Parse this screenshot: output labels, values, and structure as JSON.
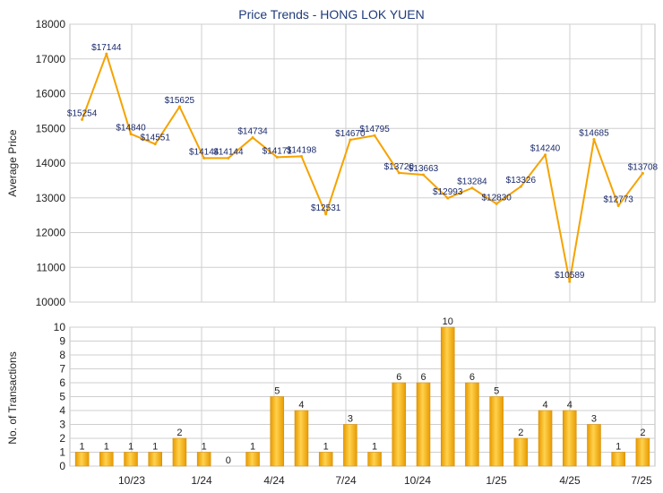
{
  "colors": {
    "line": "#f5a300",
    "bar_light": "#ffd24d",
    "bar_dark": "#e89a00",
    "grid": "#cfcfcf",
    "plot_border": "#bcbcbc",
    "title": "#1f3a7a"
  },
  "chart_data": [
    {
      "type": "line",
      "title": "Price Trends - HONG LOK YUEN",
      "ylabel": "Average Price",
      "xlabel": "",
      "ylim": [
        10000,
        18000
      ],
      "yticks": [
        10000,
        11000,
        12000,
        13000,
        14000,
        15000,
        16000,
        17000,
        18000
      ],
      "x_index": [
        0,
        1,
        2,
        3,
        4,
        5,
        6,
        7,
        8,
        9,
        10,
        11,
        12,
        13,
        14,
        15,
        16,
        17,
        18,
        19,
        20,
        21,
        22,
        23,
        24
      ],
      "values": [
        15254,
        17144,
        14840,
        14551,
        15625,
        14144,
        14144,
        14734,
        14171,
        14198,
        12531,
        14670,
        14795,
        13720,
        13663,
        12993,
        13284,
        12830,
        13326,
        14240,
        10589,
        14685,
        12773,
        13708
      ],
      "point_index": [
        0,
        1,
        2,
        3,
        4,
        5,
        6,
        7,
        8,
        9,
        10,
        11,
        12,
        13,
        14,
        15,
        16,
        17,
        18,
        19,
        20,
        21,
        22,
        23
      ],
      "labels": [
        "$15254",
        "$17144",
        "$14840",
        "$14551",
        "$15625",
        "$14144",
        "$14144",
        "$14734",
        "$14171",
        "$14198",
        "$12531",
        "$14670",
        "$14795",
        "$13720",
        "$13663",
        "$12993",
        "$13284",
        "$12830",
        "$13326",
        "$14240",
        "$10589",
        "$14685",
        "$12773",
        "$13708"
      ],
      "grid": true
    },
    {
      "type": "bar",
      "ylabel": "No. of Transactions",
      "ylim": [
        0,
        10
      ],
      "yticks": [
        0,
        1,
        2,
        3,
        4,
        5,
        6,
        7,
        8,
        9,
        10
      ],
      "values": [
        1,
        1,
        1,
        1,
        2,
        1,
        0,
        1,
        5,
        4,
        1,
        3,
        1,
        6,
        6,
        10,
        6,
        5,
        2,
        4,
        4,
        3,
        1,
        2
      ],
      "labels": [
        "1",
        "1",
        "1",
        "1",
        "2",
        "1",
        "0",
        "1",
        "5",
        "4",
        "1",
        "3",
        "1",
        "6",
        "6",
        "10",
        "6",
        "5",
        "2",
        "4",
        "4",
        "3",
        "1",
        "2"
      ],
      "xtick_labels": [
        "10/23",
        "1/24",
        "4/24",
        "7/24",
        "10/24",
        "1/25",
        "4/25",
        "7/25"
      ],
      "grid": true
    }
  ]
}
